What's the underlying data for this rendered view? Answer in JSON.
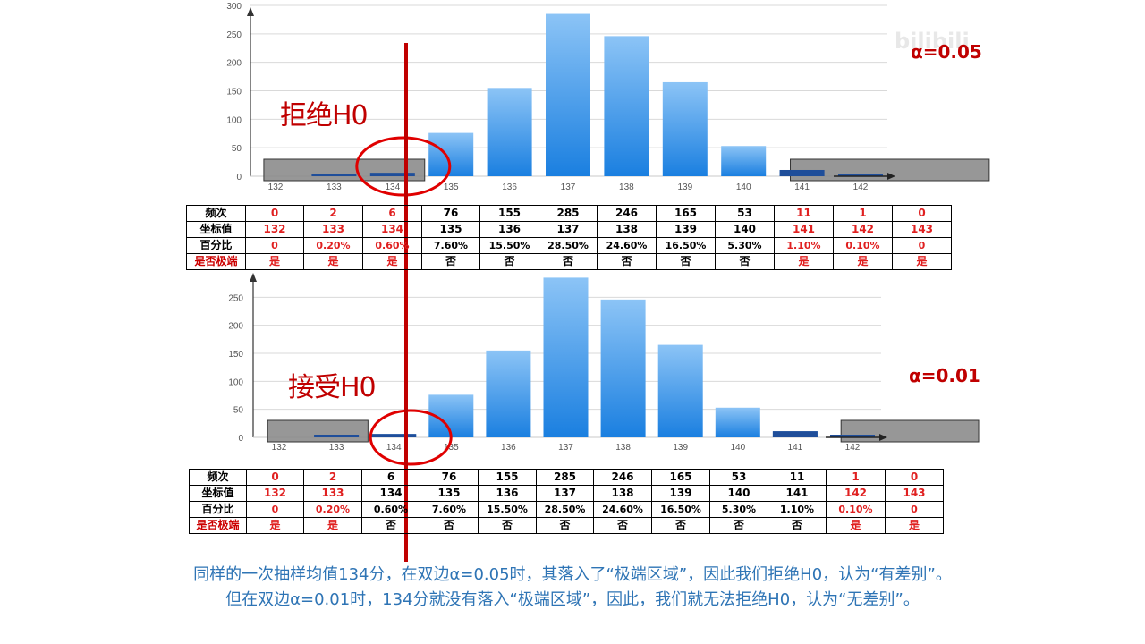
{
  "watermark": "bilibili",
  "chart_data": [
    {
      "type": "bar",
      "categories": [
        "132",
        "133",
        "134",
        "135",
        "136",
        "137",
        "138",
        "139",
        "140",
        "141",
        "142"
      ],
      "values": [
        0,
        2,
        6,
        76,
        155,
        285,
        246,
        165,
        53,
        11,
        1
      ],
      "ylim": [
        0,
        300
      ],
      "yticks": [
        0,
        50,
        100,
        150,
        200,
        250,
        300
      ],
      "grid": true,
      "annotation": "拒绝H0",
      "alpha_label": "α=0.05"
    },
    {
      "type": "bar",
      "categories": [
        "132",
        "133",
        "134",
        "135",
        "136",
        "137",
        "138",
        "139",
        "140",
        "141",
        "142"
      ],
      "values": [
        0,
        2,
        6,
        76,
        155,
        285,
        246,
        165,
        53,
        11,
        1
      ],
      "ylim": [
        0,
        300
      ],
      "yticks": [
        0,
        50,
        100,
        150,
        200,
        250
      ],
      "grid": true,
      "annotation": "接受H0",
      "alpha_label": "α=0.01"
    }
  ],
  "tables": [
    {
      "row_labels": [
        "频次",
        "坐标值",
        "百分比",
        "是否极端"
      ],
      "freq": [
        "0",
        "2",
        "6",
        "76",
        "155",
        "285",
        "246",
        "165",
        "53",
        "11",
        "1",
        "0"
      ],
      "coord": [
        "132",
        "133",
        "134",
        "135",
        "136",
        "137",
        "138",
        "139",
        "140",
        "141",
        "142",
        "143"
      ],
      "pct": [
        "0",
        "0.20%",
        "0.60%",
        "7.60%",
        "15.50%",
        "28.50%",
        "24.60%",
        "16.50%",
        "5.30%",
        "1.10%",
        "0.10%",
        "0"
      ],
      "extreme": [
        "是",
        "是",
        "是",
        "否",
        "否",
        "否",
        "否",
        "否",
        "否",
        "是",
        "是",
        "是"
      ]
    },
    {
      "row_labels": [
        "频次",
        "坐标值",
        "百分比",
        "是否极端"
      ],
      "freq": [
        "0",
        "2",
        "6",
        "76",
        "155",
        "285",
        "246",
        "165",
        "53",
        "11",
        "1",
        "0"
      ],
      "coord": [
        "132",
        "133",
        "134",
        "135",
        "136",
        "137",
        "138",
        "139",
        "140",
        "141",
        "142",
        "143"
      ],
      "pct": [
        "0",
        "0.20%",
        "0.60%",
        "7.60%",
        "15.50%",
        "28.50%",
        "24.60%",
        "16.50%",
        "5.30%",
        "1.10%",
        "0.10%",
        "0"
      ],
      "extreme": [
        "是",
        "是",
        "否",
        "否",
        "否",
        "否",
        "否",
        "否",
        "否",
        "否",
        "是",
        "是"
      ]
    }
  ],
  "caption": {
    "line1": "同样的一次抽样均值134分，在双边α=0.05时，其落入了“极端区域”，因此我们拒绝H0，认为“有差别”。",
    "line2": "但在双边α=0.01时，134分就没有落入“极端区域”，因此，我们就无法拒绝H0，认为“无差别”。"
  },
  "colors": {
    "bar_top": "#8cc4f6",
    "bar_bottom": "#1a7fe0",
    "reject_red": "#c00000",
    "table_red": "#e02020",
    "caption_blue": "#2e74b5",
    "extreme_box": "#8c8c8c",
    "vertical_line": "#c00000"
  }
}
